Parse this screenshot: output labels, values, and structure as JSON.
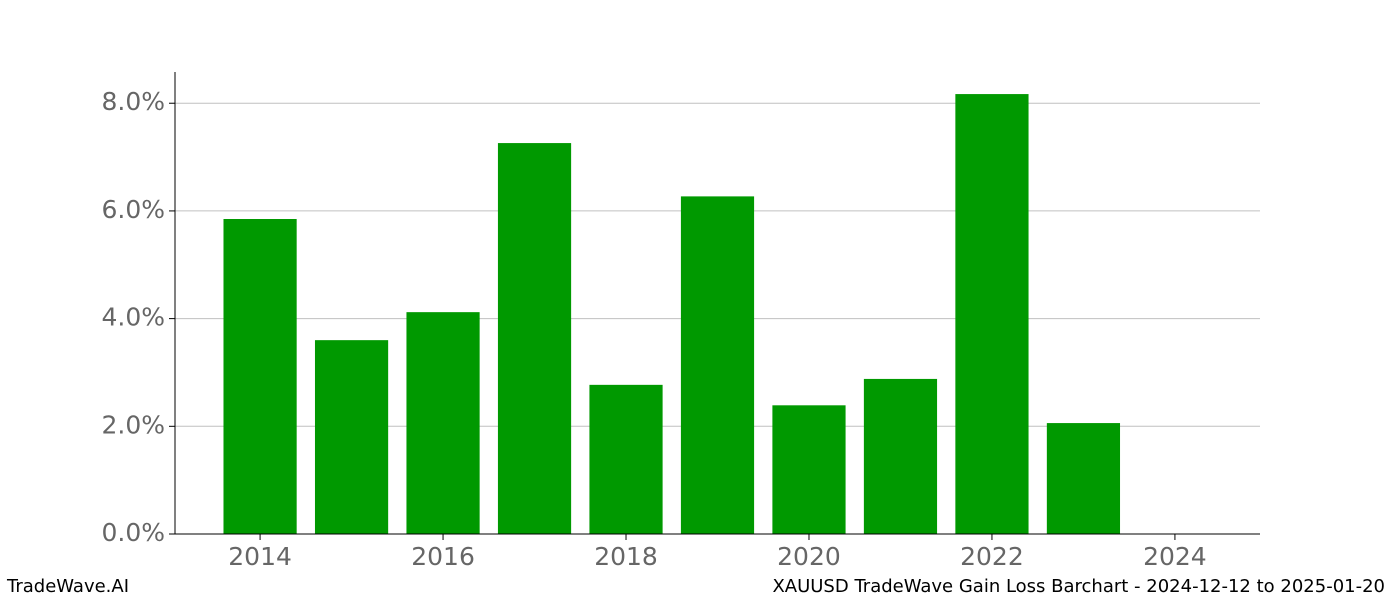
{
  "chart_data": {
    "type": "bar",
    "title": "XAUUSD TradeWave Gain Loss Barchart - 2024-12-12 to 2025-01-20",
    "source": "TradeWave.AI",
    "x": [
      2014,
      2015,
      2016,
      2017,
      2018,
      2019,
      2020,
      2021,
      2022,
      2023
    ],
    "values": [
      5.85,
      3.6,
      4.12,
      7.26,
      2.77,
      6.27,
      2.39,
      2.88,
      8.17,
      2.06
    ],
    "color": "#009900",
    "xlim": [
      2013.07,
      2024.93
    ],
    "xticks": [
      2014,
      2016,
      2018,
      2020,
      2022,
      2024
    ],
    "ylim": [
      0,
      8.58
    ],
    "yticks": [
      {
        "value": 0,
        "label": "0.0%"
      },
      {
        "value": 2,
        "label": "2.0%"
      },
      {
        "value": 4,
        "label": "4.0%"
      },
      {
        "value": 6,
        "label": "6.0%"
      },
      {
        "value": 8,
        "label": "8.0%"
      }
    ],
    "grid": true
  }
}
